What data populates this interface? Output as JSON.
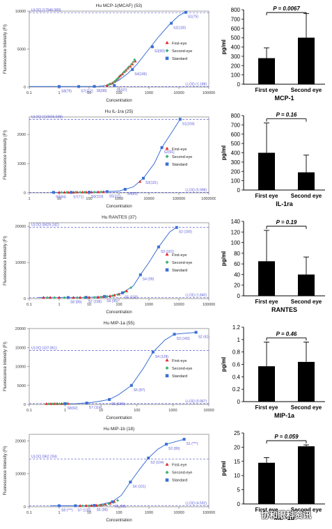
{
  "std_legend": {
    "first": "First-eye",
    "second": "Second-eye",
    "standard": "Standard"
  },
  "std_xlabel": "Concentration",
  "std_ylabel": "Fluorescence Intensity (FI)",
  "bar_ylabel": "pg/ml",
  "bar_categories": [
    "First eye",
    "Second eye"
  ],
  "watermark": "协和眼科资讯",
  "colors": {
    "first": "#e8262b",
    "second": "#3cb371",
    "standard": "#3b6fd6",
    "line": "#3b6fd6",
    "bar": "#000000",
    "uloq": "#5b5bd6"
  },
  "chart_data": [
    {
      "type": "scatter",
      "title": "Hu MCP-1(MCAF) (53)",
      "xscale": "log",
      "xlim": [
        0.1,
        100000
      ],
      "ylim": [
        0,
        10000
      ],
      "xticks": [
        0.1,
        1,
        10,
        100,
        1000,
        10000,
        100000
      ],
      "xtick_labels": [
        "0.1",
        "1",
        "10",
        "100",
        "1000",
        "10000",
        "100000"
      ],
      "yticks": [
        0,
        5000,
        10000
      ],
      "ytick_labels": [
        "0",
        "5000",
        "10000"
      ],
      "uloq": {
        "label": "ULOQ (17946.089)",
        "y": 9800
      },
      "lloq": {
        "label": "LLOQ (1.188)",
        "y": 60
      },
      "standards": [
        {
          "x": 1.0,
          "y": 60,
          "label": "S8(79)"
        },
        {
          "x": 4.5,
          "y": 60,
          "label": "S7(112)"
        },
        {
          "x": 15,
          "y": 80,
          "label": "S6(98)"
        },
        {
          "x": 70,
          "y": 200,
          "label": "S5(97)"
        },
        {
          "x": 280,
          "y": 2300,
          "label": "S4(106)"
        },
        {
          "x": 1300,
          "y": 5300,
          "label": "S3(90)"
        },
        {
          "x": 5600,
          "y": 8400,
          "label": "S2(130)"
        },
        {
          "x": 17000,
          "y": 9850,
          "label": "S1(75)"
        }
      ],
      "curve": [
        [
          0.1,
          60
        ],
        [
          20,
          70
        ],
        [
          50,
          300
        ],
        [
          100,
          900
        ],
        [
          200,
          1800
        ],
        [
          400,
          3000
        ],
        [
          1000,
          5000
        ],
        [
          2000,
          6500
        ],
        [
          5000,
          8300
        ],
        [
          10000,
          9400
        ],
        [
          17000,
          9900
        ]
      ],
      "first_eye": [
        [
          40,
          200
        ],
        [
          50,
          400
        ],
        [
          60,
          500
        ],
        [
          70,
          700
        ],
        [
          80,
          900
        ],
        [
          90,
          1100
        ],
        [
          100,
          1300
        ],
        [
          110,
          1500
        ],
        [
          130,
          1700
        ],
        [
          150,
          2000
        ],
        [
          170,
          2200
        ],
        [
          200,
          2500
        ],
        [
          240,
          2700
        ],
        [
          280,
          3000
        ],
        [
          350,
          3400
        ]
      ],
      "second_eye": [
        [
          45,
          300
        ],
        [
          55,
          400
        ],
        [
          65,
          600
        ],
        [
          75,
          800
        ],
        [
          85,
          1000
        ],
        [
          95,
          1200
        ],
        [
          120,
          1600
        ],
        [
          140,
          1900
        ],
        [
          160,
          2100
        ],
        [
          190,
          2400
        ],
        [
          220,
          2700
        ],
        [
          260,
          3000
        ],
        [
          300,
          3300
        ],
        [
          330,
          3600
        ]
      ],
      "bar": {
        "title": "MCP-1",
        "p": "P = 0.0067",
        "values": [
          280,
          500
        ],
        "errors": [
          110,
          260
        ],
        "ylim": [
          0,
          800
        ],
        "yticks": [
          0,
          100,
          200,
          300,
          400,
          500,
          600,
          700,
          800
        ]
      }
    },
    {
      "type": "scatter",
      "title": "Hu IL-1ra (25)",
      "xscale": "log",
      "xlim": [
        1,
        1000000
      ],
      "ylim": [
        0,
        2600
      ],
      "xticks": [
        1,
        10,
        100,
        1000,
        10000,
        100000,
        1000000
      ],
      "xtick_labels": [
        "1",
        "10",
        "100",
        "1000",
        "10000",
        "100000",
        "1000000"
      ],
      "yticks": [
        0,
        1000,
        2000
      ],
      "ytick_labels": [
        "0",
        "1000",
        "2000"
      ],
      "uloq": {
        "label": "ULOQ (110506.598)",
        "y": 2520
      },
      "lloq": {
        "label": "LLOQ (5.998)",
        "y": 15
      },
      "standards": [
        {
          "x": 6.5,
          "y": 15,
          "label": "S8(94)"
        },
        {
          "x": 25,
          "y": 15,
          "label": "S7(71)"
        },
        {
          "x": 100,
          "y": 20,
          "label": "S6(119)"
        },
        {
          "x": 400,
          "y": 40,
          "label": "S5(111)"
        },
        {
          "x": 1600,
          "y": 120,
          "label": "S4(83)"
        },
        {
          "x": 6500,
          "y": 500,
          "label": "S3(131)"
        },
        {
          "x": 27000,
          "y": 1550,
          "label": "S2(91)"
        },
        {
          "x": 110000,
          "y": 2520,
          "label": "S1(104)"
        }
      ],
      "curve": [
        [
          5,
          15
        ],
        [
          100,
          20
        ],
        [
          1000,
          60
        ],
        [
          3000,
          200
        ],
        [
          6500,
          500
        ],
        [
          15000,
          1000
        ],
        [
          27000,
          1550
        ],
        [
          60000,
          2100
        ],
        [
          110000,
          2520
        ]
      ],
      "first_eye": [
        [
          10,
          15
        ],
        [
          15,
          15
        ],
        [
          20,
          15
        ],
        [
          30,
          15
        ],
        [
          40,
          20
        ],
        [
          60,
          20
        ],
        [
          80,
          20
        ],
        [
          120,
          20
        ],
        [
          200,
          25
        ],
        [
          300,
          30
        ],
        [
          5000,
          380
        ]
      ],
      "second_eye": [
        [
          12,
          15
        ],
        [
          18,
          15
        ],
        [
          25,
          15
        ],
        [
          35,
          20
        ],
        [
          50,
          20
        ],
        [
          70,
          20
        ],
        [
          100,
          20
        ],
        [
          150,
          25
        ],
        [
          250,
          30
        ]
      ],
      "bar": {
        "title": "IL-1ra",
        "p": "P = 0.16",
        "values": [
          400,
          190
        ],
        "errors": [
          320,
          185
        ],
        "ylim": [
          0,
          800
        ],
        "yticks": [
          0,
          100,
          200,
          300,
          400,
          500,
          600,
          700,
          800
        ]
      }
    },
    {
      "type": "scatter",
      "title": "Hu RANTES (37)",
      "xscale": "log",
      "xlim": [
        0.1,
        100000
      ],
      "ylim": [
        0,
        21000
      ],
      "xticks": [
        0.1,
        1,
        10,
        100,
        1000,
        10000,
        100000
      ],
      "xtick_labels": [
        "0.1",
        "1",
        "10",
        "100",
        "1000",
        "10000",
        "100000"
      ],
      "yticks": [
        0,
        10000,
        20000
      ],
      "ytick_labels": [
        "0",
        "10000",
        "20000"
      ],
      "uloq": {
        "label": "ULOQ (8426.242)",
        "y": 19700
      },
      "lloq": {
        "label": "LLOQ (1.840)",
        "y": 300
      },
      "standards": [
        {
          "x": 2,
          "y": 300,
          "label": "S8 (89)"
        },
        {
          "x": 8,
          "y": 350,
          "label": "S7 (109)"
        },
        {
          "x": 33,
          "y": 600,
          "label": "S6 (95)"
        },
        {
          "x": 130,
          "y": 1600,
          "label": "S5 (103)"
        },
        {
          "x": 520,
          "y": 6600,
          "label": "S4 (99)"
        },
        {
          "x": 2100,
          "y": 14300,
          "label": "S3 (101)"
        },
        {
          "x": 8400,
          "y": 19700,
          "label": "S2 (100)"
        }
      ],
      "curve": [
        [
          0.2,
          300
        ],
        [
          10,
          350
        ],
        [
          50,
          700
        ],
        [
          130,
          1600
        ],
        [
          300,
          3500
        ],
        [
          520,
          6600
        ],
        [
          1000,
          10000
        ],
        [
          2100,
          14300
        ],
        [
          5000,
          18500
        ],
        [
          8400,
          19700
        ]
      ],
      "first_eye": [
        [
          0.3,
          300
        ],
        [
          0.5,
          300
        ],
        [
          1,
          300
        ],
        [
          3,
          300
        ],
        [
          5,
          300
        ],
        [
          10,
          350
        ],
        [
          20,
          400
        ],
        [
          30,
          500
        ],
        [
          50,
          700
        ],
        [
          70,
          900
        ],
        [
          100,
          1200
        ],
        [
          130,
          1600
        ],
        [
          180,
          2100
        ]
      ],
      "second_eye": [
        [
          0.4,
          300
        ],
        [
          0.7,
          300
        ],
        [
          1.5,
          300
        ],
        [
          4,
          300
        ],
        [
          7,
          300
        ],
        [
          15,
          350
        ],
        [
          25,
          450
        ],
        [
          40,
          600
        ],
        [
          60,
          800
        ],
        [
          90,
          1100
        ],
        [
          150,
          1800
        ],
        [
          250,
          3000
        ]
      ],
      "bar": {
        "title": "RANTES",
        "p": "P = 0.19",
        "values": [
          65,
          40
        ],
        "errors": [
          58,
          33
        ],
        "ylim": [
          0,
          140
        ],
        "yticks": [
          0,
          20,
          40,
          60,
          80,
          100,
          120,
          140
        ]
      }
    },
    {
      "type": "scatter",
      "title": "Hu MIP-1a (55)",
      "xscale": "log",
      "xlim": [
        0.1,
        10000
      ],
      "ylim": [
        0,
        20000
      ],
      "xticks": [
        0.1,
        1,
        10,
        100,
        1000,
        10000
      ],
      "xtick_labels": [
        "0.1",
        "1",
        "10",
        "100",
        "1000",
        "10000"
      ],
      "yticks": [
        0,
        5000,
        10000,
        15000,
        20000
      ],
      "ytick_labels": [
        "0",
        "5000",
        "10000",
        "15000",
        "20000"
      ],
      "uloq": {
        "label": "ULOQ (337.851)",
        "y": 14200
      },
      "lloq": {
        "label": "LLOQ (0.967)",
        "y": 200
      },
      "standards": [
        {
          "x": 1,
          "y": 200,
          "label": "S8(92)"
        },
        {
          "x": 4,
          "y": 350,
          "label": "S7 (114)"
        },
        {
          "x": 17,
          "y": 1300,
          "label": "S6 (104)"
        },
        {
          "x": 70,
          "y": 5000,
          "label": "S5 (87)"
        },
        {
          "x": 280,
          "y": 13800,
          "label": "S4 (128)"
        },
        {
          "x": 1100,
          "y": 18500,
          "label": "S3 (143)"
        },
        {
          "x": 4400,
          "y": 19000,
          "label": "S2 (41)"
        }
      ],
      "curve": [
        [
          0.3,
          150
        ],
        [
          2,
          200
        ],
        [
          5,
          450
        ],
        [
          10,
          900
        ],
        [
          17,
          1300
        ],
        [
          30,
          2500
        ],
        [
          70,
          5000
        ],
        [
          150,
          9500
        ],
        [
          280,
          13800
        ],
        [
          600,
          17000
        ],
        [
          1100,
          18500
        ],
        [
          4400,
          19000
        ]
      ],
      "first_eye": [
        [
          0.3,
          150
        ],
        [
          0.4,
          150
        ],
        [
          0.5,
          150
        ],
        [
          0.6,
          150
        ],
        [
          0.8,
          150
        ],
        [
          1.0,
          150
        ],
        [
          1.2,
          200
        ]
      ],
      "second_eye": [
        [
          0.35,
          150
        ],
        [
          0.45,
          150
        ],
        [
          0.55,
          150
        ],
        [
          0.7,
          150
        ],
        [
          0.9,
          150
        ],
        [
          1.1,
          200
        ]
      ],
      "bar": {
        "title": "MIP-1a",
        "p": "P = 0.46",
        "values": [
          0.57,
          0.64
        ],
        "errors": [
          0.39,
          0.32
        ],
        "ylim": [
          0,
          1.2
        ],
        "yticks": [
          0,
          0.2,
          0.4,
          0.6,
          0.8,
          1,
          1.2
        ]
      }
    },
    {
      "type": "scatter",
      "title": "Hu MIP-1b (18)",
      "xscale": "log",
      "xlim": [
        0.1,
        100000
      ],
      "ylim": [
        0,
        22000
      ],
      "xticks": [
        0.1,
        1,
        10,
        100,
        1000,
        10000,
        100000
      ],
      "xtick_labels": [
        "0.1",
        "1",
        "10",
        "100",
        "1000",
        "10000",
        "100000"
      ],
      "yticks": [
        0,
        10000,
        20000
      ],
      "ytick_labels": [
        "0",
        "10000",
        "20000"
      ],
      "uloq": {
        "label": "ULOQ (962.204)",
        "y": 14500
      },
      "lloq": {
        "label": "LLOQ (4.592)",
        "y": 300
      },
      "standards": [
        {
          "x": 1,
          "y": 300,
          "label": "S8 (***)"
        },
        {
          "x": 3.5,
          "y": 300,
          "label": "S7 (126)"
        },
        {
          "x": 15,
          "y": 400,
          "label": "S6 (96)"
        },
        {
          "x": 60,
          "y": 1500,
          "label": "S5 (99)"
        },
        {
          "x": 240,
          "y": 7500,
          "label": "S4 (101)"
        },
        {
          "x": 960,
          "y": 14800,
          "label": "S3 (104)"
        },
        {
          "x": 3800,
          "y": 19000,
          "label": "S2 (89)"
        },
        {
          "x": 15000,
          "y": 20500,
          "label": "S1 (***)"
        }
      ],
      "curve": [
        [
          0.5,
          300
        ],
        [
          5,
          300
        ],
        [
          20,
          500
        ],
        [
          60,
          1500
        ],
        [
          120,
          3500
        ],
        [
          240,
          7500
        ],
        [
          500,
          11500
        ],
        [
          960,
          14800
        ],
        [
          2000,
          17500
        ],
        [
          3800,
          19000
        ],
        [
          15000,
          20500
        ]
      ],
      "first_eye": [
        [
          5,
          300
        ],
        [
          8,
          300
        ],
        [
          12,
          350
        ],
        [
          18,
          400
        ],
        [
          25,
          500
        ],
        [
          35,
          700
        ],
        [
          50,
          1000
        ],
        [
          70,
          1500
        ]
      ],
      "second_eye": [
        [
          6,
          300
        ],
        [
          10,
          300
        ],
        [
          15,
          350
        ],
        [
          22,
          450
        ],
        [
          30,
          600
        ],
        [
          45,
          900
        ],
        [
          65,
          1300
        ],
        [
          90,
          1900
        ]
      ],
      "bar": {
        "title": "MIP-1b",
        "p": "P = 0.059",
        "values": [
          14.5,
          20.3
        ],
        "errors": [
          1.8,
          0.5
        ],
        "ylim": [
          0,
          25
        ],
        "yticks": [
          0,
          5,
          10,
          15,
          20,
          25
        ]
      }
    }
  ]
}
